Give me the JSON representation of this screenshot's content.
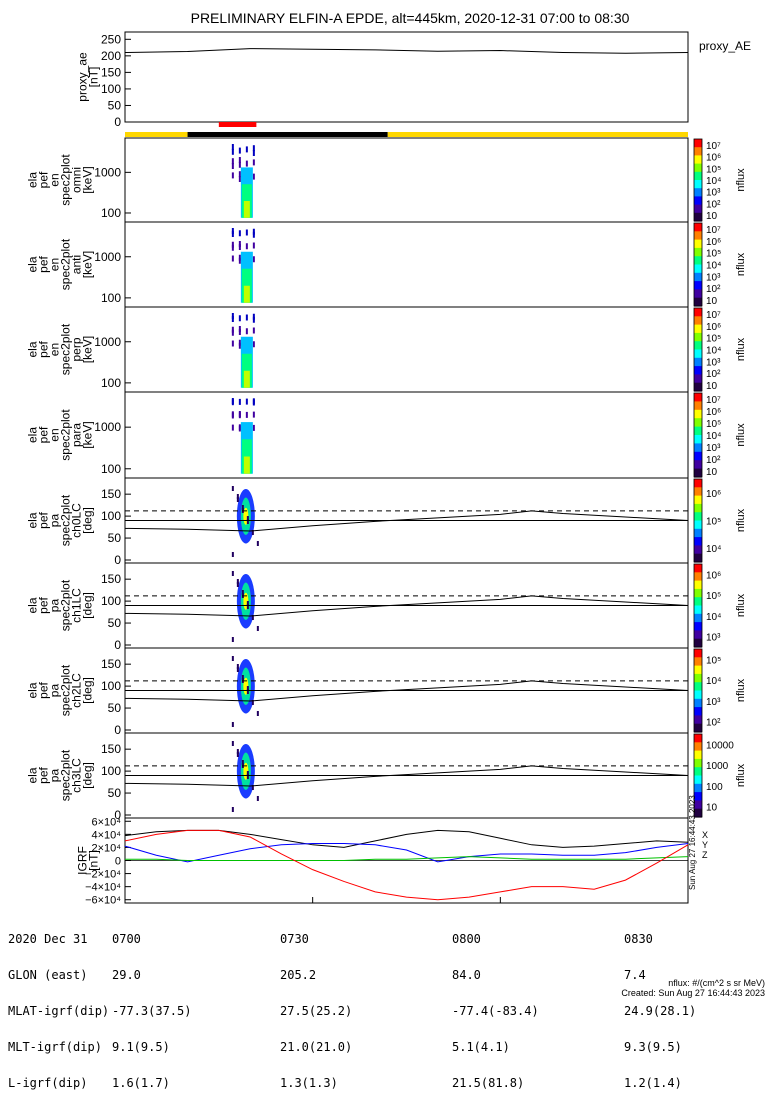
{
  "title": "PRELIMINARY ELFIN-A EPDE, alt=445km, 2020-12-31 07:00 to 08:30",
  "colors": {
    "sunlight": "#ffd700",
    "eclipse": "#000000",
    "science_zone": "#ff0000",
    "igrf_x": "#000000",
    "igrf_y": "#0000ff",
    "igrf_z": "#00c000",
    "igrf_total": "#ff0000"
  },
  "orbit_bar": {
    "day_start": "07:00",
    "night_start": "07:10",
    "night_end": "07:42",
    "day_end": "08:30",
    "science_zone_start": "07:15",
    "science_zone_end": "07:21"
  },
  "chart_data": [
    {
      "type": "line",
      "ylabel": "proxy_ae\n[nT]",
      "legend": "proxy_AE",
      "yticks": [
        "250",
        "200",
        "150",
        "100",
        "50",
        "0"
      ],
      "ylim": [
        0,
        260
      ],
      "x": [
        "07:00",
        "07:10",
        "07:20",
        "07:30",
        "07:40",
        "07:50",
        "08:00",
        "08:10",
        "08:20",
        "08:30"
      ],
      "values": [
        210,
        213,
        222,
        220,
        218,
        214,
        216,
        210,
        208,
        210
      ]
    },
    {
      "type": "heatmap",
      "ylabel": "ela\npef\nen\nspec2plot\nomni\n[keV]",
      "yscale": "log",
      "ylim": [
        60,
        7000
      ],
      "yticks": [
        "1000",
        "100"
      ],
      "colorbar": {
        "label": "nflux",
        "ticks": [
          "10",
          "10²",
          "10³",
          "10⁴",
          "10⁵",
          "10⁶",
          "10⁷"
        ]
      },
      "active_interval": [
        "07:17",
        "07:22"
      ]
    },
    {
      "type": "heatmap",
      "ylabel": "ela\npef\nen\nspec2plot\nanti\n[keV]",
      "yscale": "log",
      "ylim": [
        60,
        7000
      ],
      "yticks": [
        "1000",
        "100"
      ],
      "colorbar": {
        "label": "nflux",
        "ticks": [
          "10",
          "10²",
          "10³",
          "10⁴",
          "10⁵",
          "10⁶",
          "10⁷"
        ]
      },
      "active_interval": [
        "07:17",
        "07:22"
      ]
    },
    {
      "type": "heatmap",
      "ylabel": "ela\npef\nen\nspec2plot\nperp\n[keV]",
      "yscale": "log",
      "ylim": [
        60,
        7000
      ],
      "yticks": [
        "1000",
        "100"
      ],
      "colorbar": {
        "label": "nflux",
        "ticks": [
          "10",
          "10²",
          "10³",
          "10⁴",
          "10⁵",
          "10⁶",
          "10⁷"
        ]
      },
      "active_interval": [
        "07:17",
        "07:22"
      ]
    },
    {
      "type": "heatmap",
      "ylabel": "ela\npef\nen\nspec2plot\npara\n[keV]",
      "yscale": "log",
      "ylim": [
        60,
        7000
      ],
      "yticks": [
        "1000",
        "100"
      ],
      "colorbar": {
        "label": "nflux",
        "ticks": [
          "10",
          "10²",
          "10³",
          "10⁴",
          "10⁵",
          "10⁶",
          "10⁷"
        ]
      },
      "active_interval": [
        "07:17",
        "07:22"
      ]
    },
    {
      "type": "heatmap",
      "ylabel": "ela\npef\npa\nspec2plot\nch0LC\n[deg]",
      "ylim": [
        0,
        180
      ],
      "yticks": [
        "150",
        "100",
        "50",
        "0"
      ],
      "colorbar": {
        "label": "nflux",
        "ticks": [
          "10⁴",
          "10⁵",
          "10⁶"
        ]
      },
      "overlay": {
        "x": [
          "07:00",
          "07:10",
          "07:20",
          "07:30",
          "07:40",
          "07:50",
          "08:00",
          "08:05",
          "08:10",
          "08:20",
          "08:30"
        ],
        "solid": [
          72,
          70,
          66,
          78,
          88,
          96,
          104,
          112,
          106,
          98,
          90
        ],
        "dashed_level": 112,
        "reference_level": 90
      }
    },
    {
      "type": "heatmap",
      "ylabel": "ela\npef\npa\nspec2plot\nch1LC\n[deg]",
      "ylim": [
        0,
        180
      ],
      "yticks": [
        "150",
        "100",
        "50",
        "0"
      ],
      "colorbar": {
        "label": "nflux",
        "ticks": [
          "10³",
          "10⁴",
          "10⁵",
          "10⁶"
        ]
      },
      "overlay": {
        "x": [
          "07:00",
          "07:10",
          "07:20",
          "07:30",
          "07:40",
          "07:50",
          "08:00",
          "08:05",
          "08:10",
          "08:20",
          "08:30"
        ],
        "solid": [
          72,
          70,
          66,
          78,
          88,
          96,
          104,
          112,
          106,
          98,
          90
        ],
        "dashed_level": 112,
        "reference_level": 90
      }
    },
    {
      "type": "heatmap",
      "ylabel": "ela\npef\npa\nspec2plot\nch2LC\n[deg]",
      "ylim": [
        0,
        180
      ],
      "yticks": [
        "150",
        "100",
        "50",
        "0"
      ],
      "colorbar": {
        "label": "nflux",
        "ticks": [
          "10²",
          "10³",
          "10⁴",
          "10⁵"
        ]
      },
      "overlay": {
        "x": [
          "07:00",
          "07:10",
          "07:20",
          "07:30",
          "07:40",
          "07:50",
          "08:00",
          "08:05",
          "08:10",
          "08:20",
          "08:30"
        ],
        "solid": [
          72,
          70,
          66,
          78,
          88,
          96,
          104,
          112,
          106,
          98,
          90
        ],
        "dashed_level": 112,
        "reference_level": 90
      }
    },
    {
      "type": "heatmap",
      "ylabel": "ela\npef\npa\nspec2plot\nch3LC\n[deg]",
      "ylim": [
        0,
        180
      ],
      "yticks": [
        "150",
        "100",
        "50",
        "0"
      ],
      "colorbar": {
        "label": "nflux",
        "ticks": [
          "10",
          "100",
          "1000",
          "10000"
        ]
      },
      "overlay": {
        "x": [
          "07:00",
          "07:10",
          "07:20",
          "07:30",
          "07:40",
          "07:50",
          "08:00",
          "08:05",
          "08:10",
          "08:20",
          "08:30"
        ],
        "solid": [
          72,
          70,
          66,
          78,
          88,
          96,
          104,
          112,
          106,
          98,
          90
        ],
        "dashed_level": 112,
        "reference_level": 90
      }
    },
    {
      "type": "line",
      "ylabel": "IGRF\n[nT]",
      "ylim": [
        -65000,
        65000
      ],
      "yticks": [
        "6×10⁴",
        "4×10⁴",
        "2×10⁴",
        "0",
        "−2×10⁴",
        "−4×10⁴",
        "−6×10⁴"
      ],
      "legend_labels": [
        "X",
        "Y",
        "Z"
      ],
      "x": [
        "07:00",
        "07:05",
        "07:10",
        "07:15",
        "07:20",
        "07:25",
        "07:30",
        "07:35",
        "07:40",
        "07:45",
        "07:50",
        "07:55",
        "08:00",
        "08:05",
        "08:10",
        "08:15",
        "08:20",
        "08:25",
        "08:30"
      ],
      "series": [
        {
          "name": "X",
          "values": [
            38000,
            44000,
            46000,
            46000,
            40000,
            32000,
            24000,
            20000,
            30000,
            40000,
            46000,
            44000,
            34000,
            24000,
            20000,
            22000,
            26000,
            30000,
            28000
          ]
        },
        {
          "name": "Y",
          "values": [
            22000,
            8000,
            -2000,
            8000,
            18000,
            24000,
            26000,
            26000,
            24000,
            16000,
            -2000,
            6000,
            10000,
            10000,
            8000,
            8000,
            12000,
            20000,
            26000
          ]
        },
        {
          "name": "Z",
          "values": [
            2000,
            2000,
            0,
            0,
            0,
            0,
            0,
            0,
            2000,
            2000,
            4000,
            6000,
            4000,
            2000,
            2000,
            2000,
            2000,
            4000,
            6000
          ]
        },
        {
          "name": "",
          "values": [
            30000,
            40000,
            46000,
            46000,
            36000,
            10000,
            -14000,
            -32000,
            -48000,
            -56000,
            -60000,
            -56000,
            -48000,
            -40000,
            -40000,
            -44000,
            -30000,
            -4000,
            24000
          ]
        }
      ]
    }
  ],
  "time_axis": {
    "ticks": [
      "0700",
      "0730",
      "0800",
      "0830"
    ],
    "footer_labels": [
      "2020 Dec 31",
      "GLON (east)",
      "MLAT-igrf(dip)",
      "MLT-igrf(dip)",
      "L-igrf(dip)"
    ],
    "footer_rows": [
      [
        "29.0",
        "205.2",
        "84.0",
        "7.4"
      ],
      [
        "-77.3(37.5)",
        "27.5(25.2)",
        "-77.4(-83.4)",
        "24.9(28.1)"
      ],
      [
        "9.1(9.5)",
        "21.0(21.0)",
        "5.1(4.1)",
        "9.3(9.5)"
      ],
      [
        "1.6(1.7)",
        "1.3(1.3)",
        "21.5(81.8)",
        "1.2(1.4)"
      ]
    ]
  },
  "side_stamp": "Sun Aug 27 16:44:43 2023",
  "units_note": "nflux: #/(cm^2 s sr MeV)",
  "created": "Created: Sun Aug 27 16:44:43 2023"
}
